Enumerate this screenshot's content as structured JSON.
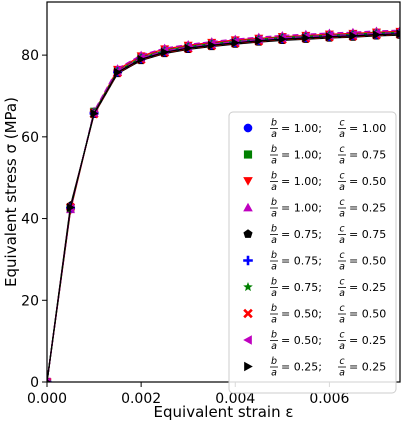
{
  "chart_data": {
    "type": "line",
    "title": "",
    "xlabel": "Equivalent strain ε",
    "ylabel": "Equivalent stress σ (MPa)",
    "xlim": [
      0.0,
      0.0075
    ],
    "ylim": [
      0,
      93
    ],
    "xticks": [
      0.0,
      0.002,
      0.004,
      0.006
    ],
    "xtick_labels": [
      "0.000",
      "0.002",
      "0.004",
      "0.006"
    ],
    "yticks": [
      0,
      20,
      40,
      60,
      80
    ],
    "ytick_labels": [
      "0",
      "20",
      "40",
      "60",
      "80"
    ],
    "grid": false,
    "legend_position": "right",
    "x": [
      0.0,
      0.0005,
      0.001,
      0.0015,
      0.002,
      0.0025,
      0.003,
      0.0035,
      0.004,
      0.0045,
      0.005,
      0.0055,
      0.006,
      0.0065,
      0.007,
      0.0075
    ],
    "series": [
      {
        "name": "b/a=1.00; c/a=1.00",
        "b_over_a": "1.00",
        "c_over_a": "1.00",
        "marker": "circle",
        "color": "#0000ff",
        "values": [
          0,
          42.5,
          66.0,
          76.0,
          79.2,
          81.0,
          82.0,
          82.7,
          83.3,
          83.8,
          84.2,
          84.5,
          84.8,
          85.0,
          85.3,
          85.5
        ]
      },
      {
        "name": "b/a=1.00; c/a=0.75",
        "b_over_a": "1.00",
        "c_over_a": "0.75",
        "marker": "square",
        "color": "#008000",
        "values": [
          0,
          42.3,
          66.2,
          76.3,
          79.5,
          81.2,
          82.2,
          82.9,
          83.5,
          84.0,
          84.4,
          84.7,
          85.0,
          85.2,
          85.5,
          85.7
        ]
      },
      {
        "name": "b/a=1.00; c/a=0.50",
        "b_over_a": "1.00",
        "c_over_a": "0.50",
        "marker": "triangle-down",
        "color": "#ff0000",
        "values": [
          0,
          42.0,
          66.0,
          76.5,
          79.8,
          81.5,
          82.4,
          83.1,
          83.7,
          84.1,
          84.5,
          84.8,
          85.1,
          85.3,
          85.6,
          85.8
        ]
      },
      {
        "name": "b/a=1.00; c/a=0.25",
        "b_over_a": "1.00",
        "c_over_a": "0.25",
        "marker": "triangle-up",
        "color": "#bf00bf",
        "values": [
          0,
          42.2,
          66.3,
          76.7,
          80.0,
          81.7,
          82.6,
          83.3,
          83.9,
          84.4,
          84.8,
          85.1,
          85.4,
          85.6,
          85.9,
          86.1
        ]
      },
      {
        "name": "b/a=0.75; c/a=0.75",
        "b_over_a": "0.75",
        "c_over_a": "0.75",
        "marker": "pentagon",
        "color": "#000000",
        "values": [
          0,
          43.2,
          65.5,
          75.5,
          78.7,
          80.4,
          81.4,
          82.1,
          82.7,
          83.2,
          83.6,
          83.9,
          84.2,
          84.4,
          84.7,
          84.9
        ]
      },
      {
        "name": "b/a=0.75; c/a=0.50",
        "b_over_a": "0.75",
        "c_over_a": "0.50",
        "marker": "plus",
        "color": "#0000ff",
        "values": [
          0,
          42.6,
          65.8,
          75.9,
          79.1,
          80.8,
          81.8,
          82.5,
          83.1,
          83.6,
          84.0,
          84.3,
          84.6,
          84.8,
          85.1,
          85.3
        ]
      },
      {
        "name": "b/a=0.75; c/a=0.25",
        "b_over_a": "0.75",
        "c_over_a": "0.25",
        "marker": "star",
        "color": "#008000",
        "values": [
          0,
          42.4,
          66.0,
          76.1,
          79.4,
          81.1,
          82.1,
          82.8,
          83.4,
          83.9,
          84.3,
          84.6,
          84.9,
          85.1,
          85.4,
          85.6
        ]
      },
      {
        "name": "b/a=0.50; c/a=0.50",
        "b_over_a": "0.50",
        "c_over_a": "0.50",
        "marker": "x",
        "color": "#ff0000",
        "values": [
          0,
          42.8,
          65.6,
          75.7,
          78.9,
          80.6,
          81.6,
          82.3,
          82.9,
          83.4,
          83.8,
          84.1,
          84.4,
          84.6,
          84.9,
          85.1
        ]
      },
      {
        "name": "b/a=0.50; c/a=0.25",
        "b_over_a": "0.50",
        "c_over_a": "0.25",
        "marker": "triangle-left",
        "color": "#bf00bf",
        "values": [
          0,
          42.5,
          65.9,
          76.0,
          79.3,
          81.0,
          82.0,
          82.7,
          83.3,
          83.8,
          84.2,
          84.5,
          84.8,
          85.0,
          85.3,
          85.5
        ]
      },
      {
        "name": "b/a=0.25; c/a=0.25",
        "b_over_a": "0.25",
        "c_over_a": "0.25",
        "marker": "triangle-right",
        "color": "#000000",
        "values": [
          0,
          42.7,
          65.7,
          75.8,
          79.0,
          80.7,
          81.7,
          82.4,
          83.0,
          83.5,
          83.9,
          84.2,
          84.5,
          84.7,
          85.0,
          85.2
        ]
      }
    ]
  }
}
